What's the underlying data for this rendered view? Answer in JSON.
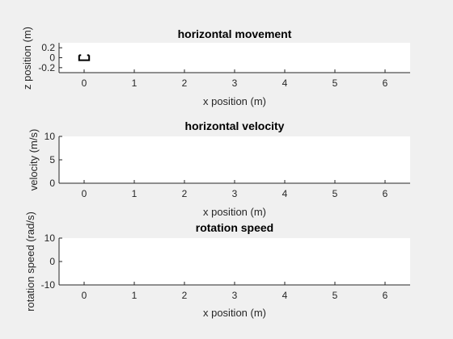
{
  "chart_data": [
    {
      "type": "line",
      "title": "horizontal movement",
      "xlabel": "x position (m)",
      "ylabel": "z position (m)",
      "xlim": [
        -0.5,
        6.5
      ],
      "ylim": [
        -0.3,
        0.3
      ],
      "xticks": [
        0,
        1,
        2,
        3,
        4,
        5,
        6
      ],
      "xtick_labels": [
        "0",
        "1",
        "2",
        "3",
        "4",
        "5",
        "6"
      ],
      "yticks": [
        -0.2,
        0,
        0.2
      ],
      "ytick_labels": [
        "-0.2",
        "0",
        "0.2"
      ],
      "grid": false,
      "color": "#000000",
      "series": [
        {
          "x": [
            -0.1,
            -0.1,
            0.1,
            0.1
          ],
          "y": [
            0.05,
            -0.05,
            -0.05,
            0.05
          ]
        },
        {
          "x": [
            -0.1,
            -0.06
          ],
          "y": [
            0.05,
            0.05
          ]
        },
        {
          "x": [
            0.06,
            0.1
          ],
          "y": [
            0.05,
            0.05
          ]
        }
      ]
    },
    {
      "type": "line",
      "title": "horizontal velocity",
      "xlabel": "x position (m)",
      "ylabel": "velocity (m/s)",
      "xlim": [
        -0.5,
        6.5
      ],
      "ylim": [
        0,
        10
      ],
      "xticks": [
        0,
        1,
        2,
        3,
        4,
        5,
        6
      ],
      "xtick_labels": [
        "0",
        "1",
        "2",
        "3",
        "4",
        "5",
        "6"
      ],
      "yticks": [
        0,
        5,
        10
      ],
      "ytick_labels": [
        "0",
        "5",
        "10"
      ],
      "grid": false,
      "series": []
    },
    {
      "type": "line",
      "title": "rotation speed",
      "xlabel": "x position (m)",
      "ylabel": "rotation speed (rad/s)",
      "xlim": [
        -0.5,
        6.5
      ],
      "ylim": [
        -10,
        10
      ],
      "xticks": [
        0,
        1,
        2,
        3,
        4,
        5,
        6
      ],
      "xtick_labels": [
        "0",
        "1",
        "2",
        "3",
        "4",
        "5",
        "6"
      ],
      "yticks": [
        -10,
        0,
        10
      ],
      "ytick_labels": [
        "-10",
        "0",
        "10"
      ],
      "grid": false,
      "series": []
    }
  ]
}
